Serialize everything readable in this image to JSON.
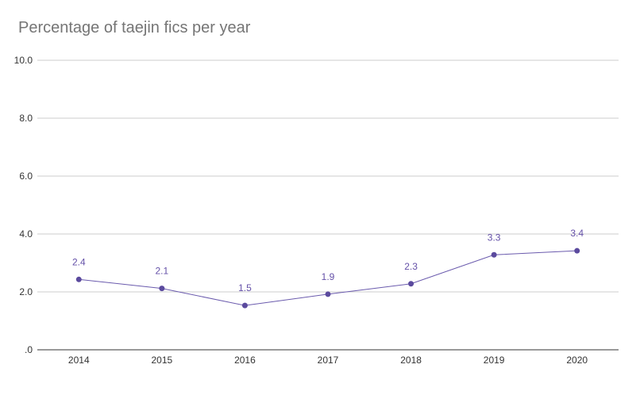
{
  "chart_data": {
    "type": "line",
    "title": "Percentage of taejin fics per year",
    "xlabel": "",
    "ylabel": "",
    "categories": [
      "2014",
      "2015",
      "2016",
      "2017",
      "2018",
      "2019",
      "2020"
    ],
    "series": [
      {
        "name": "Percentage",
        "values": [
          2.43,
          2.12,
          1.53,
          1.92,
          2.28,
          3.28,
          3.42
        ],
        "labels": [
          "2.4",
          "2.1",
          "1.5",
          "1.9",
          "2.3",
          "3.3",
          "3.4"
        ]
      }
    ],
    "ylim": [
      0,
      10
    ],
    "yticks": [
      0,
      2,
      4,
      6,
      8,
      10
    ],
    "ytick_labels": [
      ".0",
      "2.0",
      "4.0",
      "6.0",
      "8.0",
      "10.0"
    ],
    "grid": true,
    "legend": "none",
    "colors": {
      "line": "#6a5aad",
      "marker": "#5b4a9e",
      "label": "#6450a8",
      "grid": "#cccccc",
      "axis": "#333333"
    }
  }
}
